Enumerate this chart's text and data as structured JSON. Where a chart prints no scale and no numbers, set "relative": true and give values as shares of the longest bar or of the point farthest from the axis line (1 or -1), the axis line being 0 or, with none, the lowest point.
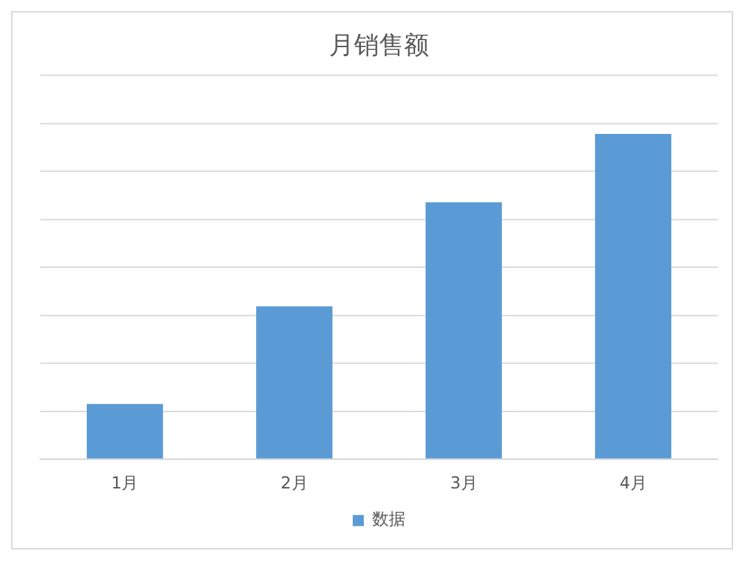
{
  "chart_data": {
    "type": "bar",
    "title": "月销售额",
    "relative": true,
    "categories": [
      "1月",
      "2月",
      "3月",
      "4月"
    ],
    "series": [
      {
        "name": "数据",
        "color": "#5b9bd5",
        "values": [
          0.17,
          0.47,
          0.79,
          1
        ]
      }
    ],
    "grid": "y",
    "legend": "bottom"
  }
}
